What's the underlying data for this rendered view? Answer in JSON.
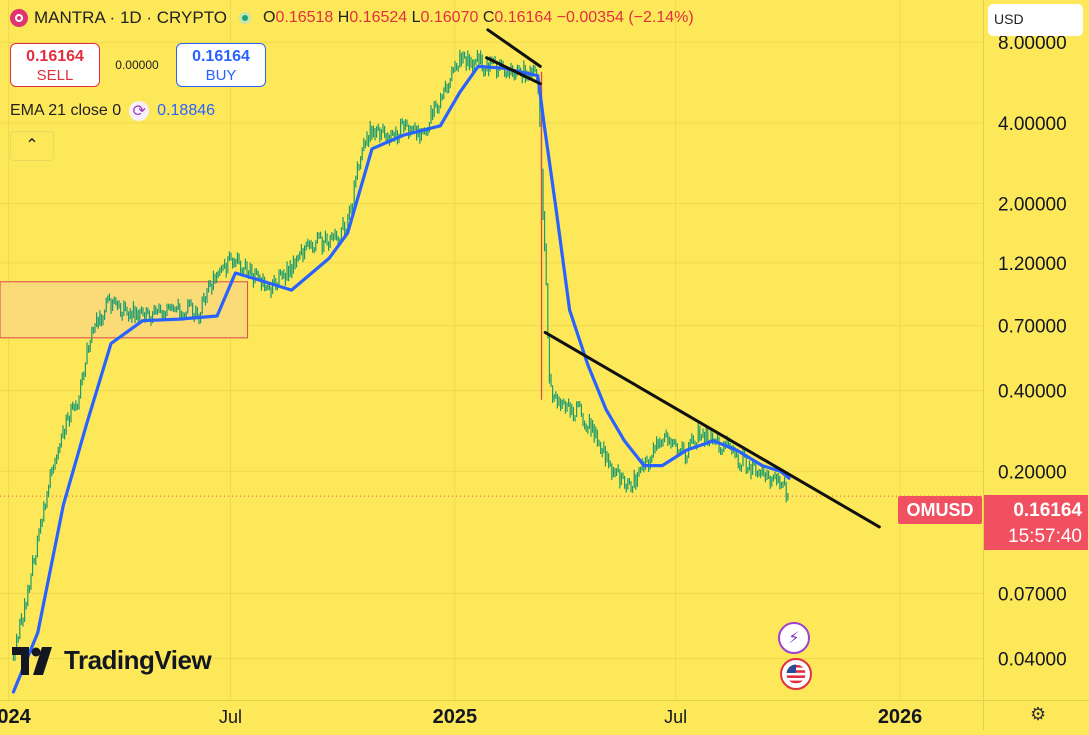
{
  "header": {
    "symbol": "MANTRA",
    "interval": "1D",
    "exchange": "CRYPTO",
    "title": "MANTRA · 1D · CRYPTO",
    "ohlc": {
      "o_label": "O",
      "o": "0.16518",
      "h_label": "H",
      "h": "0.16524",
      "l_label": "L",
      "l": "0.16070",
      "c_label": "C",
      "c": "0.16164",
      "change": "−0.00354 (−2.14%)"
    }
  },
  "trade": {
    "sell_price": "0.16164",
    "sell_label": "SELL",
    "spread": "0.00000",
    "buy_price": "0.16164",
    "buy_label": "BUY"
  },
  "indicator": {
    "label": "EMA 21 close 0",
    "value": "0.18846"
  },
  "currency": "USD",
  "last_price": {
    "symbol": "OMUSD",
    "price": "0.16164",
    "countdown": "15:57:40"
  },
  "branding": {
    "logo_text": "TradingView"
  },
  "colors": {
    "background": "#fde85a",
    "ema_line": "#2962ff",
    "candles": "#1b9b6e",
    "trend_lines": "#111111",
    "zone_fill": "#fbd97a",
    "zone_border": "#d9454f",
    "price_badge": "#f05060"
  },
  "icons": [
    "collapse-chevron-icon",
    "ema-settings-icon",
    "event-lightning-icon",
    "us-flag-icon",
    "settings-gear-icon"
  ],
  "chart_data": {
    "type": "line",
    "scale": "log",
    "title": "MANTRA · 1D · CRYPTO",
    "xlabel": "",
    "ylabel": "",
    "x_ticks": [
      "2024",
      "Jul",
      "2025",
      "Jul",
      "2026"
    ],
    "y_ticks": [
      8.0,
      4.0,
      2.0,
      1.2,
      0.7,
      0.4,
      0.2,
      0.07,
      0.04
    ],
    "y_tick_labels": [
      "8.00000",
      "4.00000",
      "2.00000",
      "1.20000",
      "0.70000",
      "0.40000",
      "0.20000",
      "0.07000",
      "0.04000"
    ],
    "ylim": [
      0.028,
      11.5
    ],
    "xlim": [
      "2023-12-25",
      "2026-03-10"
    ],
    "grid": true,
    "legend": "top-left",
    "series": [
      {
        "name": "MANTRA",
        "x": [
          "2024-01-05",
          "2024-01-15",
          "2024-01-25",
          "2024-02-05",
          "2024-02-15",
          "2024-02-25",
          "2024-03-05",
          "2024-03-15",
          "2024-03-25",
          "2024-04-05",
          "2024-04-20",
          "2024-05-05",
          "2024-05-20",
          "2024-06-05",
          "2024-06-20",
          "2024-07-05",
          "2024-07-20",
          "2024-08-05",
          "2024-08-20",
          "2024-09-05",
          "2024-09-20",
          "2024-10-05",
          "2024-10-15",
          "2024-10-25",
          "2024-11-05",
          "2024-11-20",
          "2024-12-05",
          "2024-12-20",
          "2025-01-05",
          "2025-01-20",
          "2025-02-01",
          "2025-02-10",
          "2025-02-25",
          "2025-03-10",
          "2025-03-20",
          "2025-04-01",
          "2025-04-15",
          "2025-04-25",
          "2025-05-10",
          "2025-05-25",
          "2025-06-10",
          "2025-06-20",
          "2025-07-01",
          "2025-07-10",
          "2025-07-20",
          "2025-08-01",
          "2025-08-15",
          "2025-08-25",
          "2025-09-05",
          "2025-09-15",
          "2025-09-25",
          "2025-10-02"
        ],
        "values": [
          0.04,
          0.065,
          0.11,
          0.2,
          0.28,
          0.35,
          0.55,
          0.75,
          0.85,
          0.8,
          0.77,
          0.76,
          0.82,
          0.78,
          1.1,
          1.25,
          1.05,
          0.98,
          1.15,
          1.4,
          1.45,
          1.65,
          3.0,
          3.8,
          3.6,
          3.75,
          3.6,
          5.0,
          7.0,
          6.8,
          6.4,
          6.5,
          6.2,
          6.1,
          0.4,
          0.35,
          0.33,
          0.28,
          0.2,
          0.18,
          0.22,
          0.27,
          0.25,
          0.23,
          0.28,
          0.26,
          0.24,
          0.22,
          0.2,
          0.19,
          0.18,
          0.16164
        ]
      },
      {
        "name": "EMA 21 close 0",
        "x": [
          "2024-01-05",
          "2024-01-25",
          "2024-02-15",
          "2024-03-05",
          "2024-03-25",
          "2024-04-20",
          "2024-05-20",
          "2024-06-20",
          "2024-07-05",
          "2024-07-20",
          "2024-08-20",
          "2024-09-20",
          "2024-10-05",
          "2024-10-25",
          "2024-11-20",
          "2024-12-20",
          "2025-01-05",
          "2025-01-20",
          "2025-02-10",
          "2025-03-10",
          "2025-03-15",
          "2025-03-25",
          "2025-04-05",
          "2025-04-20",
          "2025-05-05",
          "2025-05-20",
          "2025-06-05",
          "2025-06-20",
          "2025-07-10",
          "2025-08-01",
          "2025-08-20",
          "2025-09-10",
          "2025-09-25",
          "2025-10-02"
        ],
        "values": [
          0.03,
          0.05,
          0.15,
          0.3,
          0.6,
          0.73,
          0.74,
          0.76,
          1.1,
          1.05,
          0.95,
          1.25,
          1.55,
          3.2,
          3.6,
          3.9,
          5.2,
          6.5,
          6.4,
          6.0,
          4.0,
          1.9,
          0.8,
          0.5,
          0.34,
          0.26,
          0.21,
          0.21,
          0.24,
          0.26,
          0.24,
          0.21,
          0.2,
          0.18846
        ]
      }
    ],
    "trend_lines": [
      {
        "from": {
          "x": "2025-01-28",
          "y": 8.9
        },
        "to": {
          "x": "2025-03-12",
          "y": 6.5
        }
      },
      {
        "from": {
          "x": "2025-01-27",
          "y": 7.0
        },
        "to": {
          "x": "2025-03-12",
          "y": 5.6
        }
      },
      {
        "from": {
          "x": "2025-03-16",
          "y": 0.66
        },
        "to": {
          "x": "2025-12-15",
          "y": 0.124
        }
      }
    ],
    "zones": [
      {
        "x_from": "2023-12-25",
        "x_to": "2024-07-15",
        "y_low": 0.63,
        "y_high": 1.02
      }
    ],
    "current_price": 0.16164
  }
}
